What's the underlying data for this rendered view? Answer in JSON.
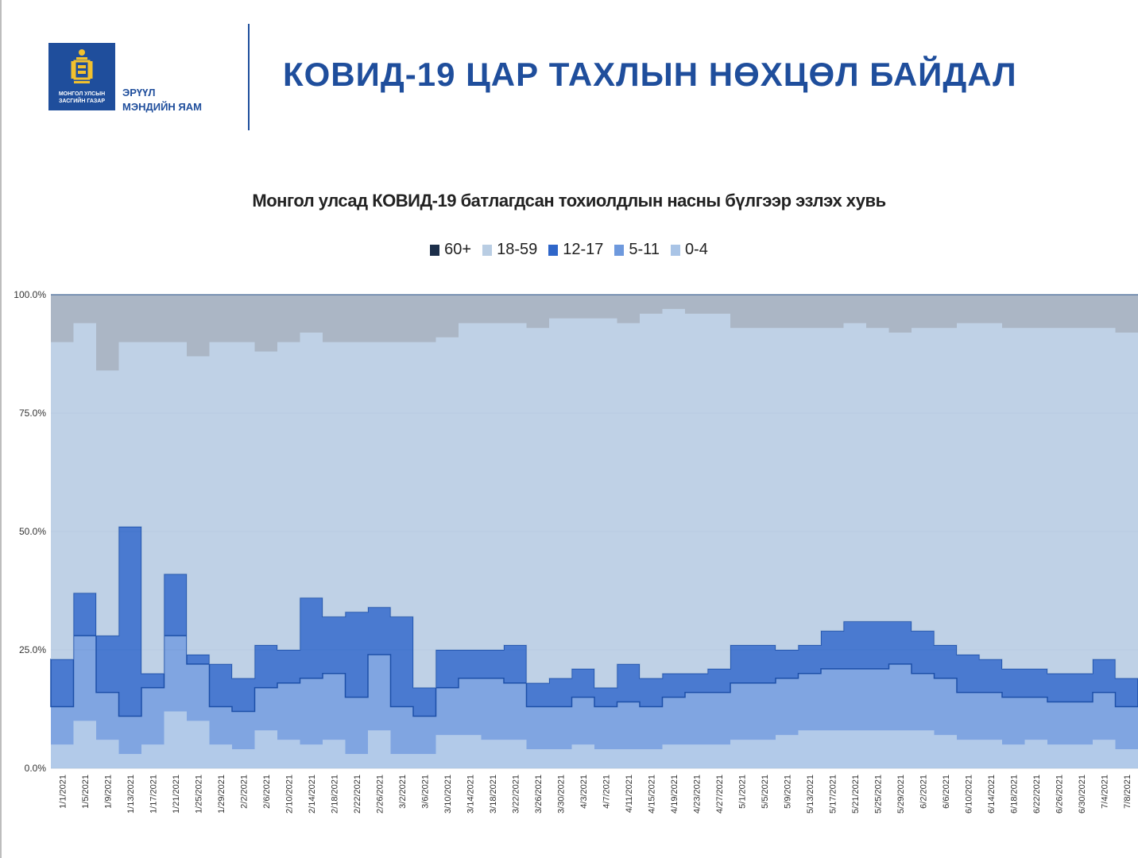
{
  "header": {
    "logo_text_line1": "МОНГОЛ УЛСЫН",
    "logo_text_line2": "ЗАСГИЙН ГАЗАР",
    "ministry_line1": "ЭРҮҮЛ",
    "ministry_line2": "МЭНДИЙН ЯАМ",
    "title": "КОВИД-19 ЦАР ТАХЛЫН НӨХЦӨЛ БАЙДАЛ"
  },
  "colors": {
    "brand_blue": "#1f4e9c",
    "plot_bg": "#e2eaf4",
    "grid": "#b8c7d8"
  },
  "chart_data": {
    "type": "area",
    "title": "Монгол улсад КОВИД-19 батлагдсан тохиолдлын насны бүлгээр эзлэх хувь",
    "stacked": true,
    "percent_stacked": true,
    "legend_position": "top",
    "ylim": [
      0,
      100
    ],
    "y_ticks": [
      "0.0%",
      "25.0%",
      "50.0%",
      "75.0%",
      "100.0%"
    ],
    "grid": true,
    "x_tick_labels": [
      "1/1/2021",
      "1/5/2021",
      "1/9/2021",
      "1/13/2021",
      "1/17/2021",
      "1/21/2021",
      "1/25/2021",
      "1/29/2021",
      "2/2/2021",
      "2/6/2021",
      "2/10/2021",
      "2/14/2021",
      "2/18/2021",
      "2/22/2021",
      "2/26/2021",
      "3/2/2021",
      "3/6/2021",
      "3/10/2021",
      "3/14/2021",
      "3/18/2021",
      "3/22/2021",
      "3/26/2021",
      "3/30/2021",
      "4/3/2021",
      "4/7/2021",
      "4/11/2021",
      "4/15/2021",
      "4/19/2021",
      "4/23/2021",
      "4/27/2021",
      "5/1/2021",
      "5/5/2021",
      "5/9/2021",
      "5/13/2021",
      "5/17/2021",
      "5/21/2021",
      "5/25/2021",
      "5/29/2021",
      "6/2/2021",
      "6/6/2021",
      "6/10/2021",
      "6/14/2021",
      "6/18/2021",
      "6/22/2021",
      "6/26/2021",
      "6/30/2021",
      "7/4/2021",
      "7/8/2021"
    ],
    "series_order": [
      "0-4",
      "5-11",
      "12-17",
      "18-59",
      "60+"
    ],
    "series": [
      {
        "name": "60+",
        "color": "#1c2f4a"
      },
      {
        "name": "18-59",
        "color": "#b9cde3"
      },
      {
        "name": "12-17",
        "color": "#2f66c9"
      },
      {
        "name": "5-11",
        "color": "#6e99dd"
      },
      {
        "name": "0-4",
        "color": "#a9c4e6"
      }
    ],
    "x": [
      "1/1/2021",
      "1/5/2021",
      "1/9/2021",
      "1/13/2021",
      "1/17/2021",
      "1/21/2021",
      "1/25/2021",
      "1/29/2021",
      "2/2/2021",
      "2/6/2021",
      "2/10/2021",
      "2/14/2021",
      "2/18/2021",
      "2/22/2021",
      "2/26/2021",
      "3/2/2021",
      "3/6/2021",
      "3/10/2021",
      "3/14/2021",
      "3/18/2021",
      "3/22/2021",
      "3/26/2021",
      "3/30/2021",
      "4/3/2021",
      "4/7/2021",
      "4/11/2021",
      "4/15/2021",
      "4/19/2021",
      "4/23/2021",
      "4/27/2021",
      "5/1/2021",
      "5/5/2021",
      "5/9/2021",
      "5/13/2021",
      "5/17/2021",
      "5/21/2021",
      "5/25/2021",
      "5/29/2021",
      "6/2/2021",
      "6/6/2021",
      "6/10/2021",
      "6/14/2021",
      "6/18/2021",
      "6/22/2021",
      "6/26/2021",
      "6/30/2021",
      "7/4/2021",
      "7/8/2021"
    ],
    "values": {
      "0-4": [
        5,
        10,
        6,
        3,
        5,
        12,
        10,
        5,
        4,
        8,
        6,
        5,
        6,
        3,
        8,
        3,
        3,
        7,
        7,
        6,
        6,
        4,
        4,
        5,
        4,
        4,
        4,
        5,
        5,
        5,
        6,
        6,
        7,
        8,
        8,
        8,
        8,
        8,
        8,
        7,
        6,
        6,
        5,
        6,
        5,
        5,
        6,
        4
      ],
      "5-11": [
        8,
        18,
        10,
        8,
        12,
        16,
        12,
        8,
        8,
        9,
        12,
        14,
        14,
        12,
        16,
        10,
        8,
        10,
        12,
        13,
        12,
        9,
        9,
        10,
        9,
        10,
        9,
        10,
        11,
        11,
        12,
        12,
        12,
        12,
        13,
        13,
        13,
        14,
        12,
        12,
        10,
        10,
        10,
        9,
        9,
        9,
        10,
        9
      ],
      "12-17": [
        10,
        9,
        12,
        40,
        3,
        13,
        2,
        9,
        7,
        9,
        7,
        17,
        12,
        18,
        10,
        19,
        6,
        8,
        6,
        6,
        8,
        5,
        6,
        6,
        4,
        8,
        6,
        5,
        4,
        5,
        8,
        8,
        6,
        6,
        8,
        10,
        10,
        9,
        9,
        7,
        8,
        7,
        6,
        6,
        6,
        6,
        7,
        6
      ],
      "18-59": [
        67,
        57,
        56,
        39,
        70,
        49,
        63,
        68,
        71,
        62,
        65,
        56,
        58,
        57,
        56,
        58,
        73,
        66,
        69,
        69,
        68,
        75,
        76,
        74,
        78,
        72,
        77,
        77,
        76,
        75,
        67,
        67,
        68,
        67,
        64,
        63,
        62,
        61,
        64,
        67,
        70,
        71,
        72,
        72,
        73,
        73,
        70,
        73
      ],
      "60+": [
        10,
        6,
        16,
        10,
        10,
        10,
        13,
        10,
        10,
        12,
        10,
        8,
        10,
        10,
        10,
        10,
        10,
        9,
        6,
        6,
        6,
        7,
        5,
        5,
        5,
        6,
        4,
        3,
        4,
        4,
        7,
        7,
        7,
        7,
        7,
        6,
        7,
        8,
        7,
        7,
        6,
        6,
        7,
        7,
        7,
        7,
        7,
        8
      ]
    }
  }
}
